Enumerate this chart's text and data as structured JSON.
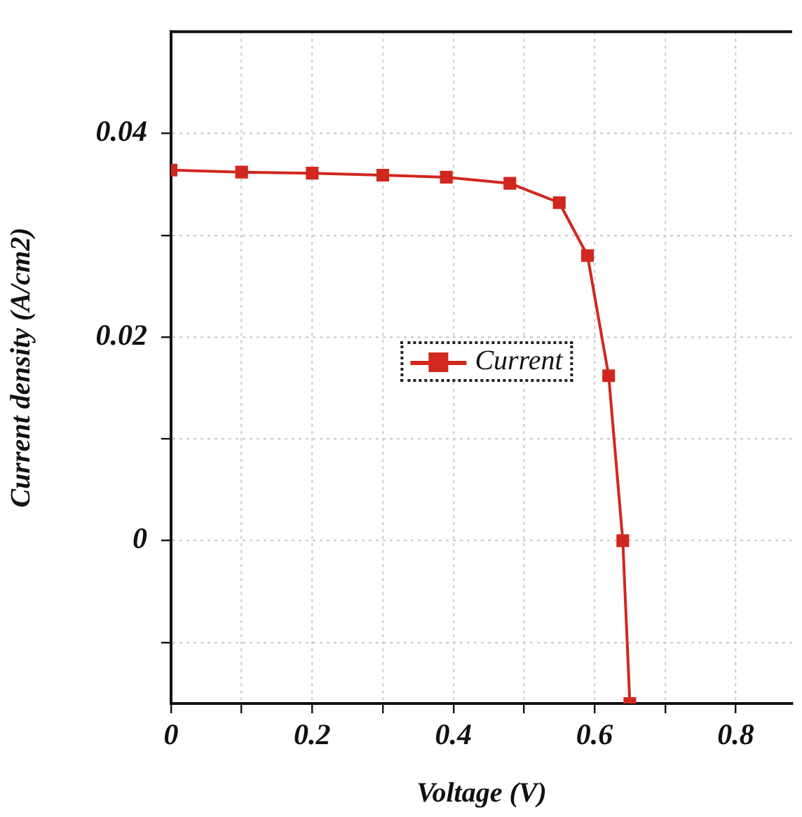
{
  "chart_data": {
    "type": "line",
    "xlabel": "Voltage (V)",
    "ylabel": "Current density (A/cm2)",
    "x": [
      0,
      0.1,
      0.2,
      0.3,
      0.39,
      0.48,
      0.55,
      0.59,
      0.62,
      0.64,
      0.65
    ],
    "series": [
      {
        "name": "Current",
        "color": "#d0281e",
        "values": [
          0.0364,
          0.0362,
          0.0361,
          0.0359,
          0.0357,
          0.0351,
          0.0332,
          0.028,
          0.0162,
          0,
          -0.016
        ]
      }
    ],
    "xlim": [
      0,
      0.88
    ],
    "xticks": [
      0,
      {
        "value": 0.1,
        "label": null
      },
      0.2,
      {
        "value": 0.3,
        "label": null
      },
      0.4,
      {
        "value": 0.5,
        "label": null
      },
      0.6,
      {
        "value": 0.7,
        "label": null
      },
      0.8
    ],
    "ylim": [
      -0.016,
      0.05
    ],
    "yticks": [
      {
        "value": -0.01,
        "label": null
      },
      0,
      {
        "value": 0.01,
        "label": null
      },
      0.02,
      {
        "value": 0.03,
        "label": null
      },
      0.04
    ],
    "grid": true,
    "legend": "center",
    "marker": "square",
    "line_style": "solid"
  }
}
